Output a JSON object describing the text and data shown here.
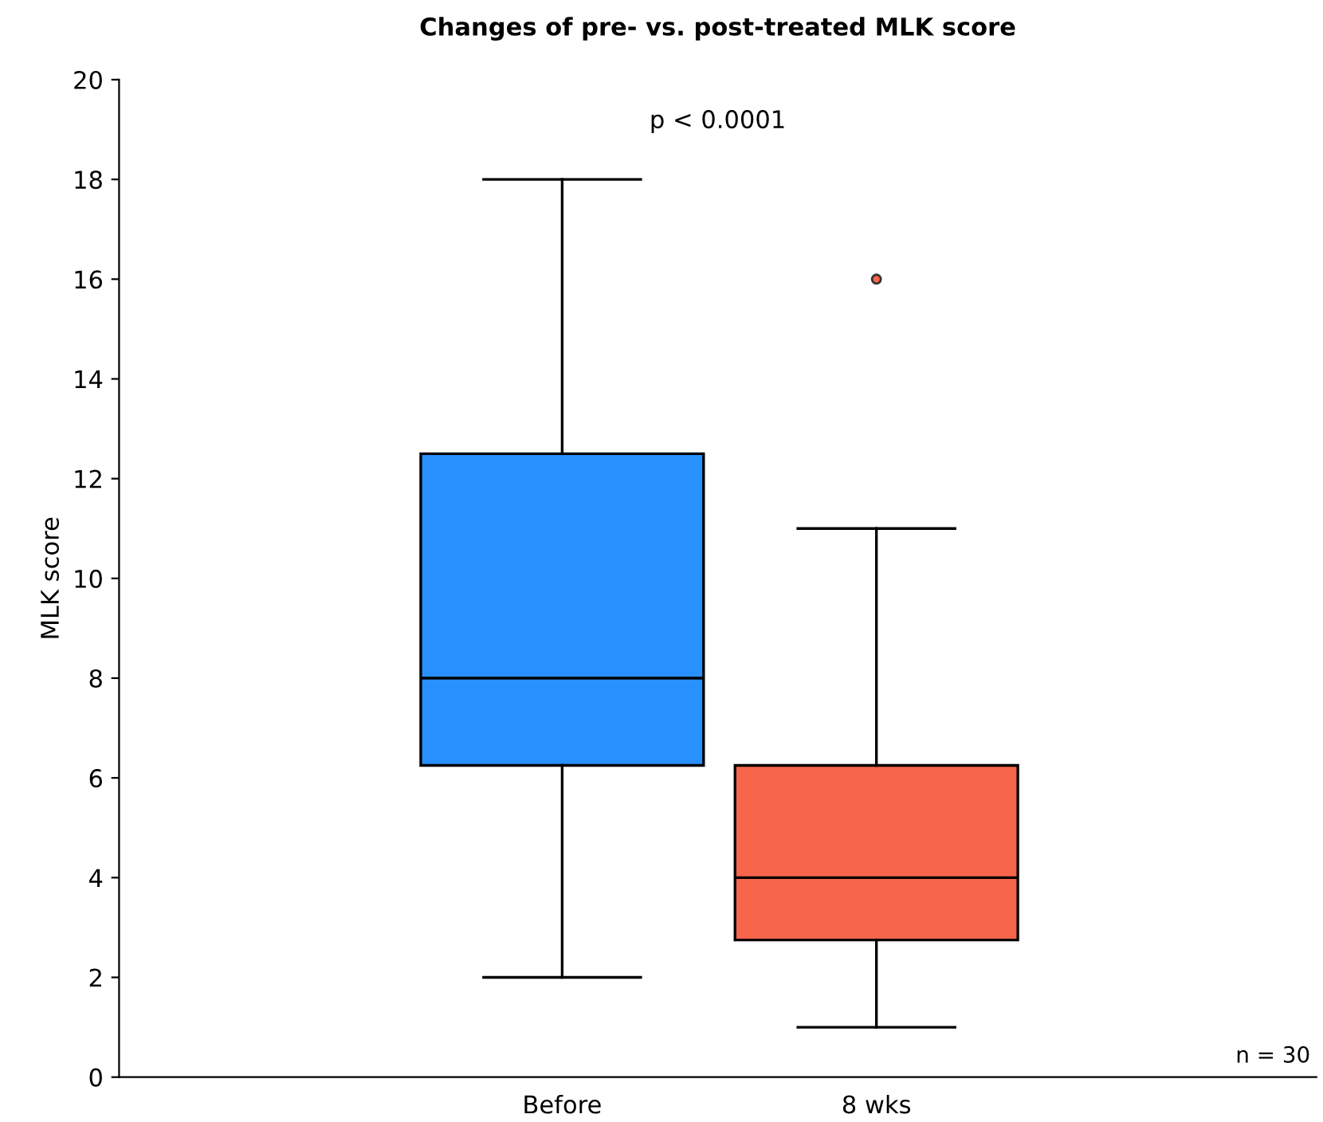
{
  "chart_data": {
    "type": "box",
    "title": "Changes of pre- vs. post-treated MLK score",
    "ylabel": "MLK score",
    "categories": [
      "Before",
      "8 wks"
    ],
    "boxes": [
      {
        "low": 2,
        "q1": 6.25,
        "median": 8,
        "q3": 12.5,
        "high": 18
      },
      {
        "low": 1,
        "q1": 2.75,
        "median": 4,
        "q3": 6.25,
        "high": 11,
        "outliers": [
          16
        ]
      }
    ],
    "colors": [
      "#2990ff",
      "#f7654a"
    ],
    "ylim": [
      0,
      20
    ],
    "yticks": [
      0,
      2,
      4,
      6,
      8,
      10,
      12,
      14,
      16,
      18,
      20
    ],
    "annotations": [
      "p < 0.0001",
      "n = 30"
    ],
    "grid": false,
    "legend": false
  }
}
